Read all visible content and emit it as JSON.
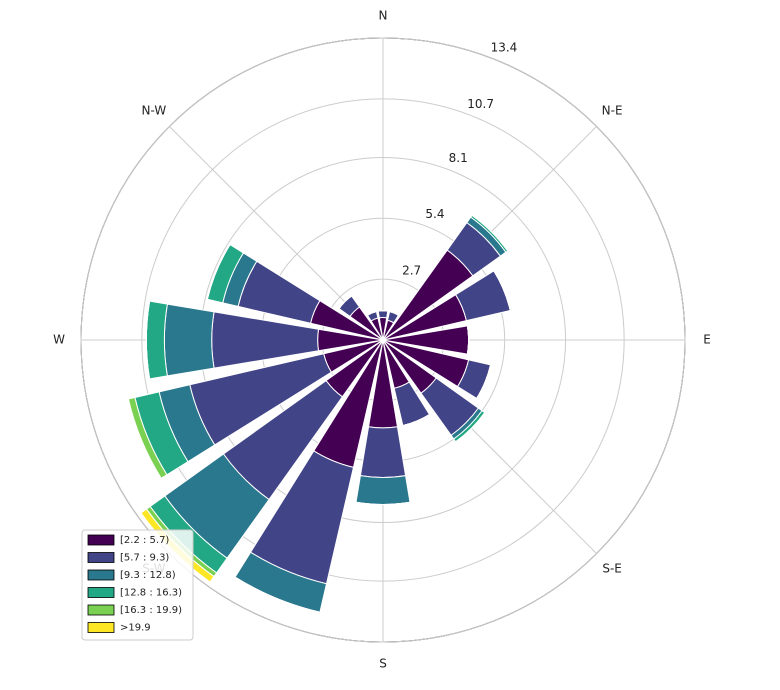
{
  "chart_data": {
    "type": "windrose",
    "categories": [
      "N",
      null,
      "N-E",
      null,
      "E",
      null,
      "S-E",
      null,
      "S",
      null,
      "S-W",
      null,
      "W",
      null,
      "N-W",
      null
    ],
    "series": [
      {
        "name": "[2.2 : 5.7)",
        "color": "#440154",
        "values": [
          1.0,
          0.9,
          4.9,
          3.8,
          3.8,
          3.9,
          2.9,
          2.2,
          3.9,
          5.8,
          3.1,
          2.7,
          2.9,
          3.3,
          1.8,
          1.0
        ]
      },
      {
        "name": "[5.7 : 9.3)",
        "color": "#414487",
        "values": [
          0.3,
          0.4,
          1.5,
          2.0,
          0,
          1.0,
          2.3,
          1.7,
          2.2,
          5.3,
          5.6,
          6.1,
          4.7,
          3.3,
          0.6,
          0.3
        ]
      },
      {
        "name": "[9.3 : 12.8)",
        "color": "#2a788e",
        "values": [
          0,
          0,
          0.3,
          0,
          0,
          0,
          0.2,
          0,
          1.2,
          1.3,
          3.2,
          1.4,
          2.1,
          0.7,
          0,
          0
        ]
      },
      {
        "name": "[12.8 : 16.3)",
        "color": "#22a884",
        "values": [
          0,
          0,
          0.1,
          0,
          0,
          0,
          0.15,
          0,
          0,
          0,
          0.8,
          1.1,
          0.8,
          0.7,
          0,
          0
        ]
      },
      {
        "name": "[16.3 : 19.9)",
        "color": "#7ad151",
        "values": [
          0,
          0,
          0,
          0,
          0,
          0,
          0,
          0,
          0,
          0,
          0.2,
          0.3,
          0,
          0,
          0,
          0
        ]
      },
      {
        "name": ">19.9",
        "color": "#fde725",
        "values": [
          0,
          0,
          0,
          0,
          0,
          0,
          0,
          0,
          0,
          0,
          0.3,
          0,
          0,
          0,
          0,
          0
        ]
      }
    ],
    "rlim": [
      0,
      13.4
    ],
    "rticks": [
      2.7,
      5.4,
      8.1,
      10.7,
      13.4
    ],
    "grid": true,
    "legend": "lower left"
  }
}
